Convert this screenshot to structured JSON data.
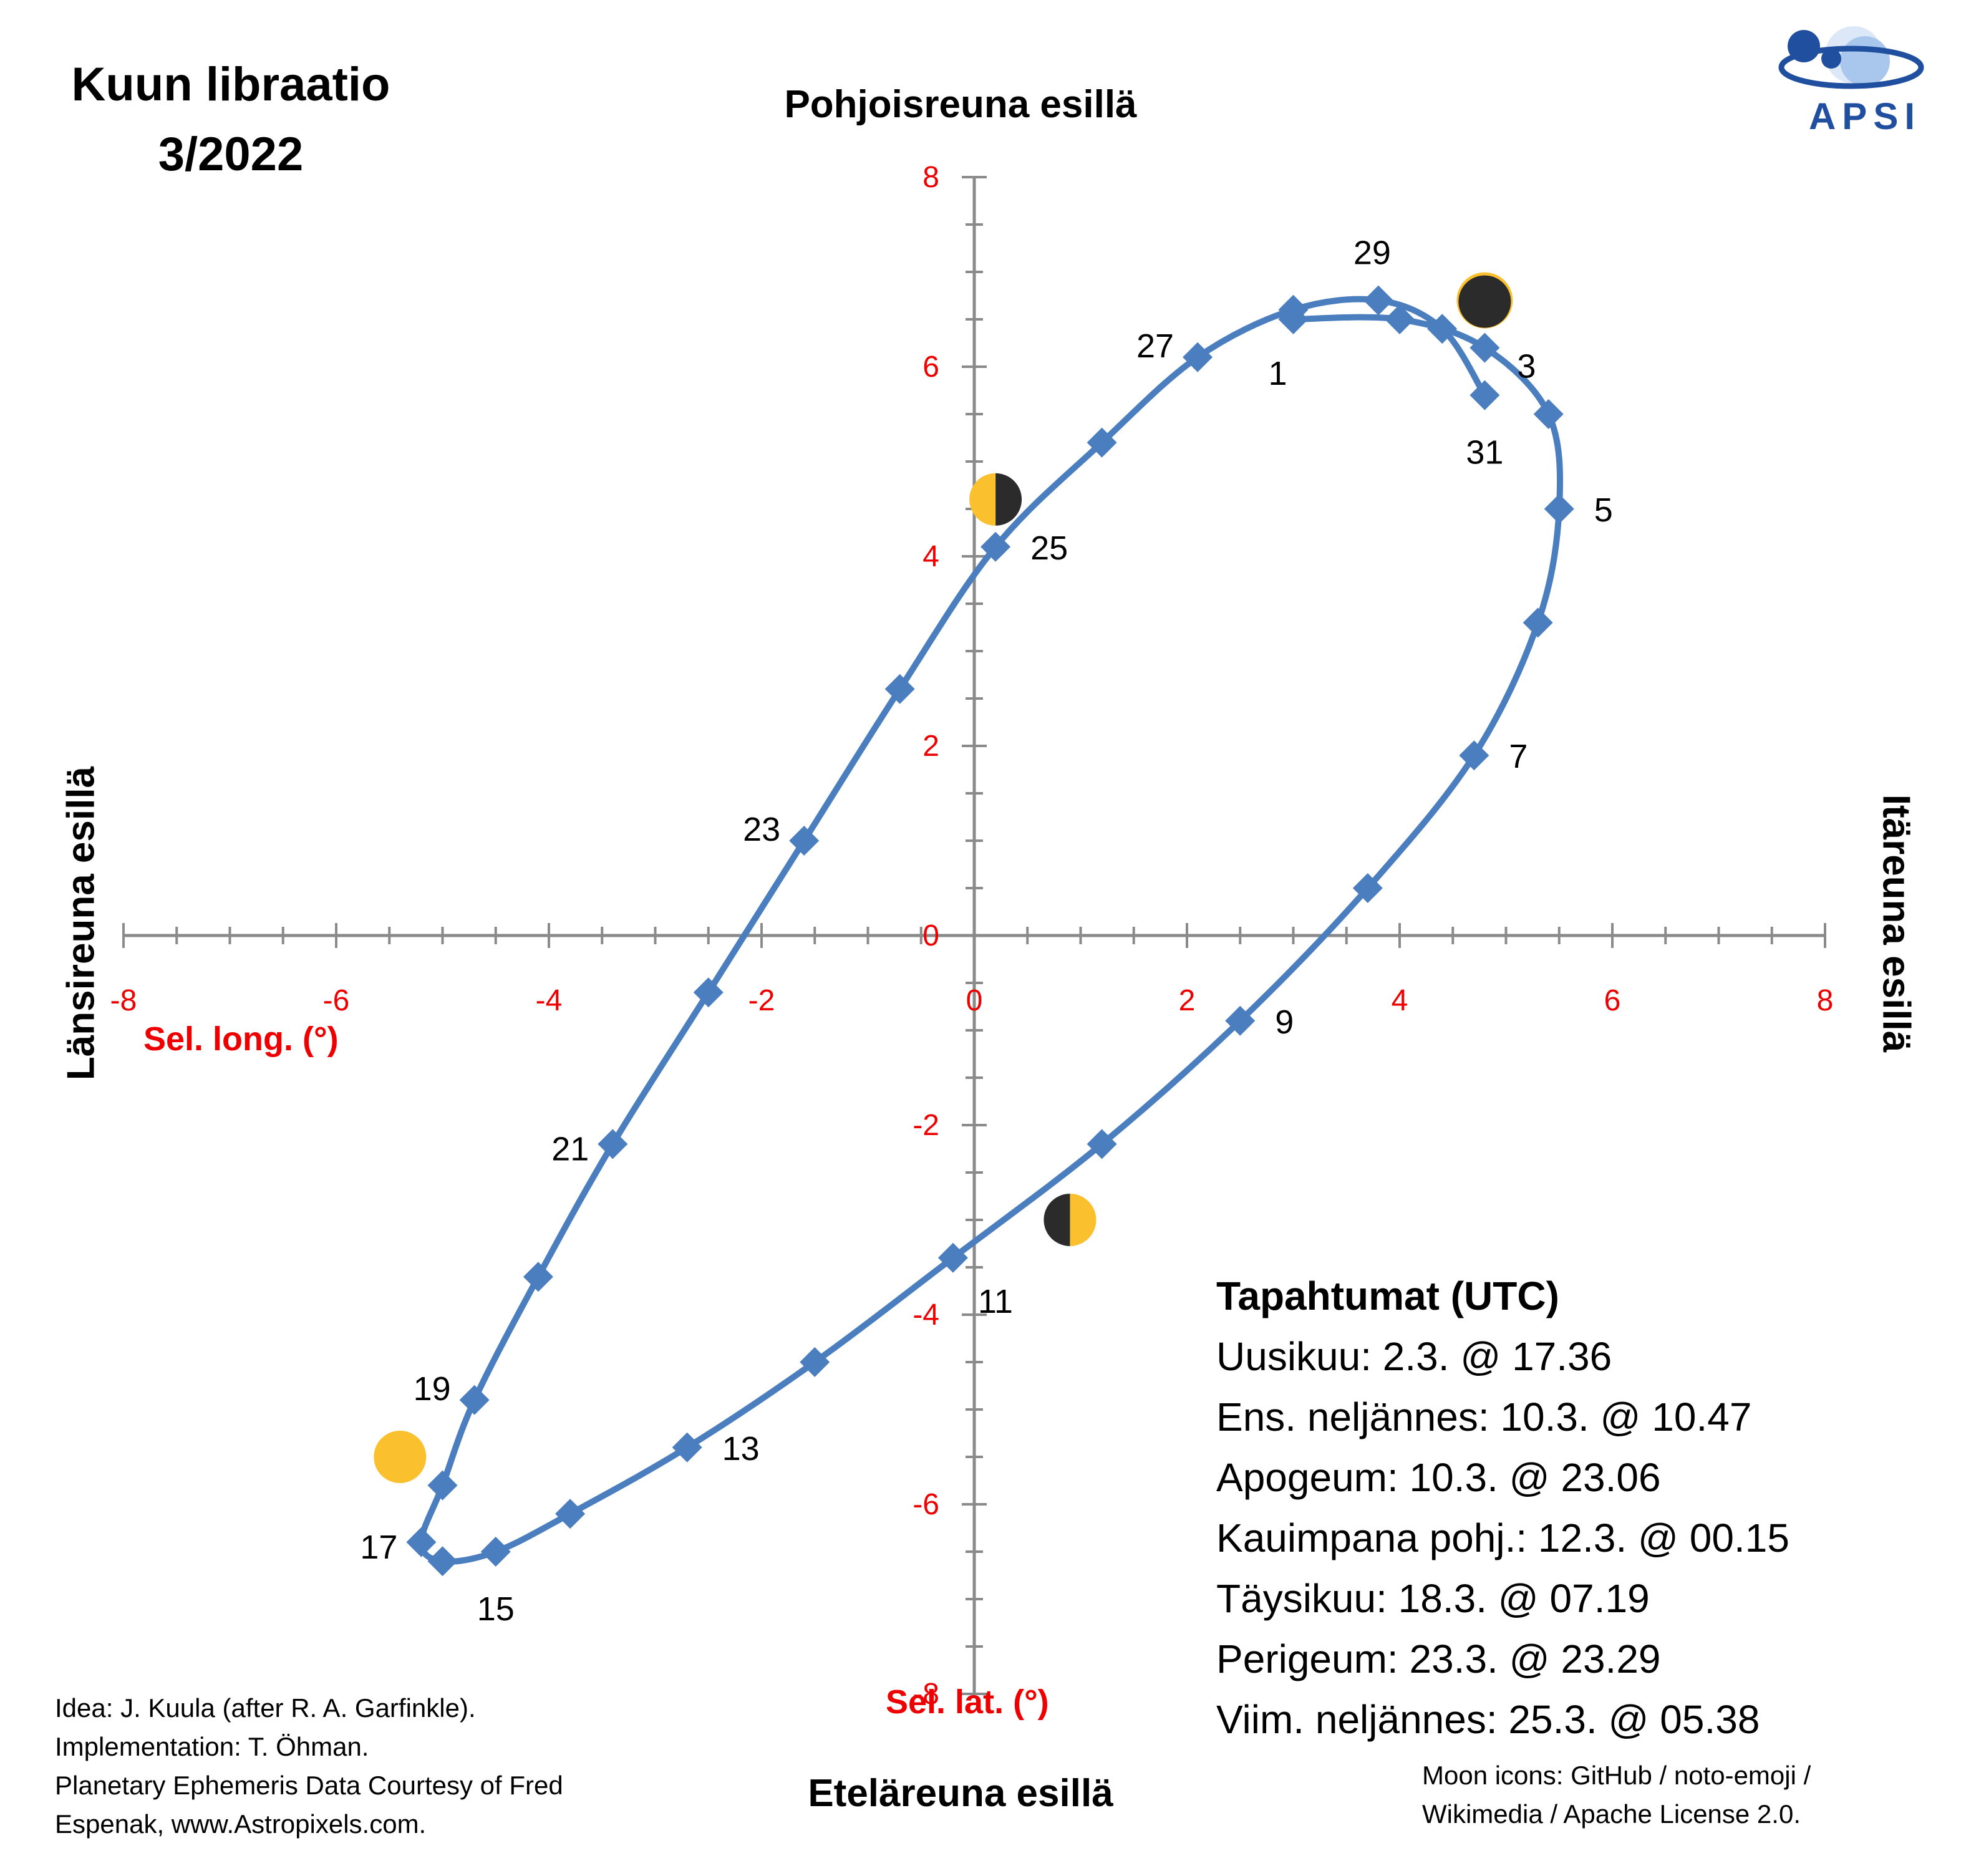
{
  "title_line1": "Kuun libraatio",
  "title_line2": "3/2022",
  "edge_labels": {
    "top": "Pohjoisreuna esillä",
    "bottom": "Eteläreuna esillä",
    "left": "Länsireuna esillä",
    "right": "Itäreuna esillä"
  },
  "events": {
    "heading": "Tapahtumat (UTC)",
    "items": [
      "Uusikuu: 2.3. @ 17.36",
      "Ens. neljännes: 10.3. @ 10.47",
      "Apogeum: 10.3. @ 23.06",
      "Kauimpana pohj.: 12.3. @ 00.15",
      "Täysikuu: 18.3. @ 07.19",
      "Perigeum: 23.3. @ 23.29",
      "Viim. neljännes: 25.3. @ 05.38"
    ]
  },
  "credits": [
    "Idea: J. Kuula (after R.  A. Garfinkle).",
    "Implementation: T. Öhman.",
    "Planetary Ephemeris Data Courtesy of Fred",
    "Espenak, www.Astropixels.com."
  ],
  "moon_credit": [
    "Moon icons:  GitHub / noto-emoji /",
    "Wikimedia / Apache License 2.0."
  ],
  "logo_text": "APSI",
  "colors": {
    "series": "#4a7ebf",
    "tick_labels": "#ee0000",
    "axis": "#8a8a8a",
    "moon_lit": "#fbc02d",
    "moon_dark": "#2b2b2b"
  },
  "chart_data": {
    "type": "scatter",
    "xlabel": "Sel. long. (°)",
    "ylabel": "Sel. lat. (°)",
    "xlim": [
      -8,
      8
    ],
    "ylim": [
      -8,
      8
    ],
    "xticks": [
      -8,
      -6,
      -4,
      -2,
      0,
      2,
      4,
      6,
      8
    ],
    "yticks": [
      -8,
      -6,
      -4,
      -2,
      0,
      2,
      4,
      6,
      8
    ],
    "grid": false,
    "series": [
      {
        "points": [
          {
            "day": 1,
            "x": 3.0,
            "y": 6.5
          },
          {
            "day": 2,
            "x": 4.0,
            "y": 6.5
          },
          {
            "day": 3,
            "x": 4.8,
            "y": 6.2
          },
          {
            "day": 4,
            "x": 5.4,
            "y": 5.5
          },
          {
            "day": 5,
            "x": 5.5,
            "y": 4.5
          },
          {
            "day": 6,
            "x": 5.3,
            "y": 3.3
          },
          {
            "day": 7,
            "x": 4.7,
            "y": 1.9
          },
          {
            "day": 8,
            "x": 3.7,
            "y": 0.5
          },
          {
            "day": 9,
            "x": 2.5,
            "y": -0.9
          },
          {
            "day": 10,
            "x": 1.2,
            "y": -2.2
          },
          {
            "day": 11,
            "x": -0.2,
            "y": -3.4
          },
          {
            "day": 12,
            "x": -1.5,
            "y": -4.5
          },
          {
            "day": 13,
            "x": -2.7,
            "y": -5.4
          },
          {
            "day": 14,
            "x": -3.8,
            "y": -6.1
          },
          {
            "day": 15,
            "x": -4.5,
            "y": -6.5
          },
          {
            "day": 16,
            "x": -5.0,
            "y": -6.6
          },
          {
            "day": 17,
            "x": -5.2,
            "y": -6.4
          },
          {
            "day": 18,
            "x": -5.0,
            "y": -5.8
          },
          {
            "day": 19,
            "x": -4.7,
            "y": -4.9
          },
          {
            "day": 20,
            "x": -4.1,
            "y": -3.6
          },
          {
            "day": 21,
            "x": -3.4,
            "y": -2.2
          },
          {
            "day": 22,
            "x": -2.5,
            "y": -0.6
          },
          {
            "day": 23,
            "x": -1.6,
            "y": 1.0
          },
          {
            "day": 24,
            "x": -0.7,
            "y": 2.6
          },
          {
            "day": 25,
            "x": 0.2,
            "y": 4.1
          },
          {
            "day": 26,
            "x": 1.2,
            "y": 5.2
          },
          {
            "day": 27,
            "x": 2.1,
            "y": 6.1
          },
          {
            "day": 28,
            "x": 3.0,
            "y": 6.6
          },
          {
            "day": 29,
            "x": 3.8,
            "y": 6.7
          },
          {
            "day": 30,
            "x": 4.4,
            "y": 6.4
          },
          {
            "day": 31,
            "x": 4.8,
            "y": 5.7
          }
        ]
      }
    ],
    "point_labels": [
      {
        "text": "1",
        "day": 1,
        "pos": "below-left"
      },
      {
        "text": "3",
        "day": 3,
        "pos": "upper-right"
      },
      {
        "text": "5",
        "day": 5,
        "pos": "right"
      },
      {
        "text": "7",
        "day": 7,
        "pos": "right"
      },
      {
        "text": "9",
        "day": 9,
        "pos": "right"
      },
      {
        "text": "11",
        "day": 11,
        "pos": "below-right"
      },
      {
        "text": "13",
        "day": 13,
        "pos": "right"
      },
      {
        "text": "15",
        "day": 15,
        "pos": "below"
      },
      {
        "text": "17",
        "day": 17,
        "pos": "left"
      },
      {
        "text": "19",
        "day": 19,
        "pos": "upper-left"
      },
      {
        "text": "21",
        "day": 21,
        "pos": "left"
      },
      {
        "text": "23",
        "day": 23,
        "pos": "upper-left"
      },
      {
        "text": "25",
        "day": 25,
        "pos": "right"
      },
      {
        "text": "27",
        "day": 27,
        "pos": "upper-left"
      },
      {
        "text": "29",
        "day": 29,
        "pos": "above"
      },
      {
        "text": "31",
        "day": 31,
        "pos": "below"
      }
    ],
    "moon_phases": [
      {
        "phase": "new-moon",
        "x": 4.8,
        "y": 6.7
      },
      {
        "phase": "first-quarter",
        "x": 0.9,
        "y": -3.0
      },
      {
        "phase": "full-moon",
        "x": -5.4,
        "y": -5.5
      },
      {
        "phase": "last-quarter",
        "x": 0.2,
        "y": 4.6
      }
    ]
  }
}
